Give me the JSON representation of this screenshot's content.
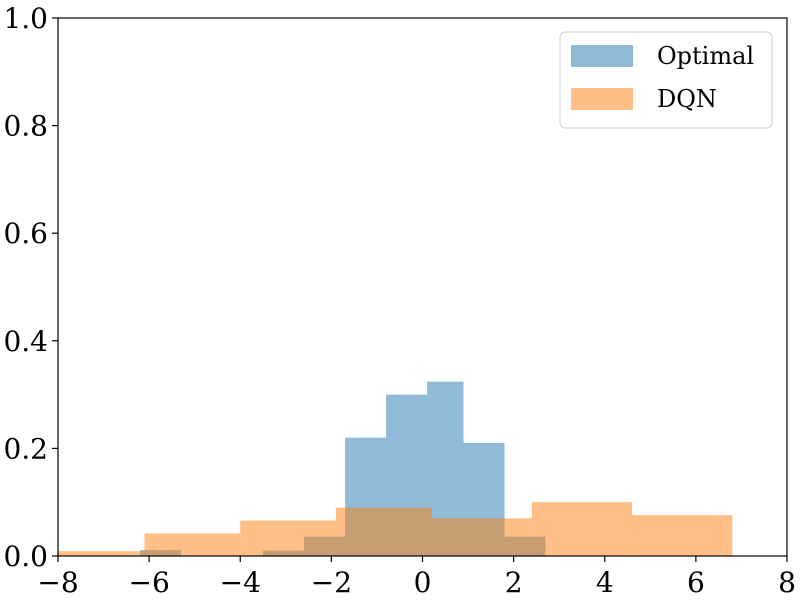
{
  "chart_data": {
    "type": "histogram",
    "title": "",
    "xlabel": "",
    "ylabel": "",
    "xlim": [
      -8,
      8
    ],
    "ylim": [
      0,
      1.0
    ],
    "grid": false,
    "legend_position": "top-right",
    "x_ticks": [
      -8,
      -6,
      -4,
      -2,
      0,
      2,
      4,
      6,
      8
    ],
    "x_tick_labels": [
      "−8",
      "−6",
      "−4",
      "−2",
      "0",
      "2",
      "4",
      "6",
      "8"
    ],
    "y_ticks": [
      0.0,
      0.2,
      0.4,
      0.6,
      0.8,
      1.0
    ],
    "y_tick_labels": [
      "0.0",
      "0.2",
      "0.4",
      "0.6",
      "0.8",
      "1.0"
    ],
    "series": [
      {
        "name": "Optimal",
        "color": "#1f77b4",
        "alpha": 0.5,
        "bin_edges": [
          -6.2,
          -5.3,
          -4.4,
          -3.5,
          -2.6,
          -1.7,
          -0.8,
          0.1,
          0.9,
          1.8,
          2.7
        ],
        "values": [
          0.011,
          0.0,
          0.0,
          0.01,
          0.036,
          0.22,
          0.3,
          0.324,
          0.21,
          0.036
        ]
      },
      {
        "name": "DQN",
        "color": "#ff7f0e",
        "alpha": 0.5,
        "bin_edges": [
          -8.0,
          -6.1,
          -4.0,
          -1.9,
          0.2,
          2.4,
          4.6,
          6.8
        ],
        "values": [
          0.009,
          0.042,
          0.066,
          0.09,
          0.07,
          0.1,
          0.076
        ]
      }
    ]
  }
}
